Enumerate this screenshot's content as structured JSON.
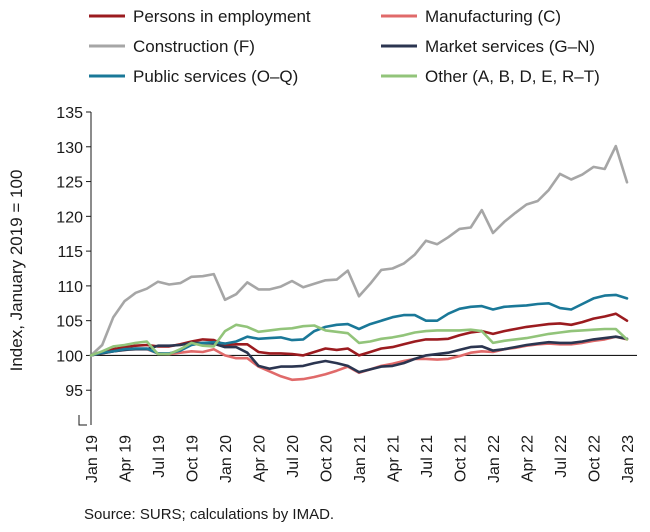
{
  "chart_data": {
    "type": "line",
    "title": "",
    "xlabel": "",
    "ylabel": "Index, January 2019 = 100",
    "ylim": [
      90,
      135
    ],
    "yticks": [
      95,
      100,
      105,
      110,
      115,
      120,
      125,
      130,
      135
    ],
    "x_tick_labels": [
      "Jan 19",
      "Apr 19",
      "Jul 19",
      "Oct 19",
      "Jan 20",
      "Apr 20",
      "Jul 20",
      "Oct 20",
      "Jan 21",
      "Apr 21",
      "Jul 21",
      "Oct 21",
      "Jan 22",
      "Apr 22",
      "Jul 22",
      "Oct 22",
      "Jan 23"
    ],
    "x": [
      "Jan 19",
      "Feb 19",
      "Mar 19",
      "Apr 19",
      "May 19",
      "Jun 19",
      "Jul 19",
      "Aug 19",
      "Sep 19",
      "Oct 19",
      "Nov 19",
      "Dec 19",
      "Jan 20",
      "Feb 20",
      "Mar 20",
      "Apr 20",
      "May 20",
      "Jun 20",
      "Jul 20",
      "Aug 20",
      "Sep 20",
      "Oct 20",
      "Nov 20",
      "Dec 20",
      "Jan 21",
      "Feb 21",
      "Mar 21",
      "Apr 21",
      "May 21",
      "Jun 21",
      "Jul 21",
      "Aug 21",
      "Sep 21",
      "Oct 21",
      "Nov 21",
      "Dec 21",
      "Jan 22",
      "Feb 22",
      "Mar 22",
      "Apr 22",
      "May 22",
      "Jun 22",
      "Jul 22",
      "Aug 22",
      "Sep 22",
      "Oct 22",
      "Nov 22",
      "Dec 22",
      "Jan 23"
    ],
    "reference_line": 100,
    "legend_position": "top",
    "series": [
      {
        "name": "Persons in employment",
        "color": "#9b1b1f",
        "values": [
          100,
          100.5,
          100.9,
          101.2,
          101.4,
          101.5,
          101.3,
          101.3,
          101.6,
          102.0,
          102.3,
          102.2,
          101.5,
          101.6,
          101.6,
          100.5,
          100.3,
          100.3,
          100.2,
          100.0,
          100.5,
          101.0,
          100.8,
          101.0,
          100.0,
          100.5,
          101.0,
          101.2,
          101.6,
          102.0,
          102.3,
          102.3,
          102.4,
          102.9,
          103.3,
          103.5,
          103.1,
          103.5,
          103.8,
          104.1,
          104.3,
          104.5,
          104.6,
          104.4,
          104.8,
          105.3,
          105.6,
          106.0,
          105.0
        ]
      },
      {
        "name": "Manufacturing (C)",
        "color": "#e06a6a",
        "values": [
          100,
          100.3,
          100.6,
          100.8,
          101.0,
          100.9,
          100.3,
          100.2,
          100.4,
          100.6,
          100.5,
          100.9,
          100.0,
          99.6,
          99.6,
          98.4,
          97.7,
          97.0,
          96.5,
          96.6,
          96.9,
          97.3,
          97.8,
          98.4,
          97.5,
          98.0,
          98.5,
          98.8,
          99.2,
          99.5,
          99.5,
          99.4,
          99.5,
          99.9,
          100.4,
          100.6,
          100.5,
          100.9,
          101.1,
          101.4,
          101.6,
          101.7,
          101.6,
          101.6,
          101.8,
          102.1,
          102.3,
          102.7,
          102.3
        ]
      },
      {
        "name": "Construction (F)",
        "color": "#a6a6a6",
        "values": [
          100,
          101.5,
          105.5,
          107.8,
          109.0,
          109.6,
          110.6,
          110.2,
          110.4,
          111.3,
          111.4,
          111.7,
          108.0,
          108.8,
          110.5,
          109.5,
          109.5,
          109.9,
          110.7,
          109.8,
          110.3,
          110.8,
          110.9,
          112.2,
          108.5,
          110.3,
          112.3,
          112.5,
          113.2,
          114.5,
          116.5,
          116.0,
          117.0,
          118.2,
          118.4,
          120.9,
          117.6,
          119.2,
          120.5,
          121.7,
          122.2,
          123.8,
          126.1,
          125.3,
          126.0,
          127.1,
          126.8,
          130.1,
          124.9
        ]
      },
      {
        "name": "Market services (G–N)",
        "color": "#2b3550",
        "values": [
          100,
          100.3,
          100.6,
          100.8,
          100.9,
          100.9,
          101.4,
          101.4,
          101.5,
          101.8,
          101.8,
          101.7,
          101.2,
          101.2,
          100.4,
          98.5,
          98.1,
          98.4,
          98.4,
          98.5,
          98.9,
          99.2,
          98.9,
          98.5,
          97.6,
          98.0,
          98.4,
          98.5,
          98.9,
          99.5,
          100.0,
          100.2,
          100.4,
          100.8,
          101.2,
          101.3,
          100.7,
          100.9,
          101.2,
          101.5,
          101.7,
          101.9,
          101.8,
          101.8,
          102.0,
          102.3,
          102.5,
          102.7,
          102.4
        ]
      },
      {
        "name": "Public services (O–Q)",
        "color": "#1a7898",
        "values": [
          100,
          100.4,
          100.6,
          100.9,
          101.0,
          101.0,
          100.3,
          100.3,
          100.7,
          101.5,
          101.8,
          101.9,
          101.7,
          102.0,
          102.7,
          102.4,
          102.5,
          102.6,
          102.2,
          102.3,
          103.5,
          104.1,
          104.4,
          104.5,
          103.8,
          104.5,
          105.0,
          105.5,
          105.8,
          105.8,
          105.0,
          105.0,
          106.0,
          106.7,
          107.0,
          107.1,
          106.6,
          107.0,
          107.1,
          107.2,
          107.4,
          107.5,
          106.8,
          106.6,
          107.4,
          108.2,
          108.6,
          108.7,
          108.2
        ]
      },
      {
        "name": "Other (A, B, D, E, R–T)",
        "color": "#92c47a",
        "values": [
          100,
          100.6,
          101.3,
          101.5,
          101.8,
          102.0,
          100.2,
          100.2,
          100.9,
          101.8,
          101.4,
          101.3,
          103.5,
          104.4,
          104.1,
          103.4,
          103.6,
          103.8,
          103.9,
          104.2,
          104.3,
          103.6,
          103.4,
          103.2,
          101.8,
          102.0,
          102.4,
          102.6,
          102.9,
          103.3,
          103.5,
          103.6,
          103.6,
          103.6,
          103.7,
          103.5,
          101.8,
          102.1,
          102.3,
          102.5,
          102.8,
          103.1,
          103.3,
          103.5,
          103.6,
          103.7,
          103.8,
          103.8,
          102.3
        ]
      }
    ]
  },
  "source_note": "Source: SURS; calculations by IMAD."
}
